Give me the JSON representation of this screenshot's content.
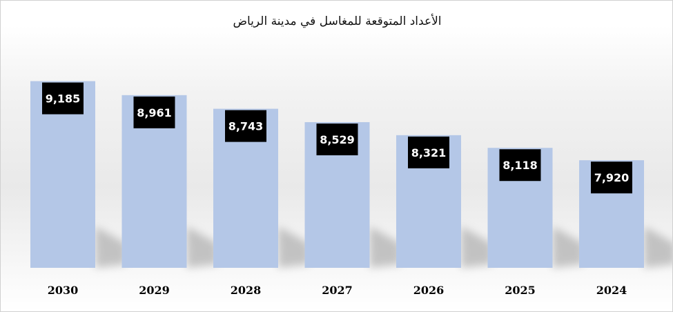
{
  "chart_data": {
    "type": "bar",
    "title": "الأعداد المتوقعة للمغاسل في مدينة الرياض",
    "categories": [
      "2030",
      "2029",
      "2028",
      "2027",
      "2026",
      "2025",
      "2024"
    ],
    "values": [
      9185,
      8961,
      8743,
      8529,
      8321,
      8118,
      7920
    ],
    "value_labels": [
      "9,185",
      "8,961",
      "8,743",
      "8,529",
      "8,321",
      "8,118",
      "7,920"
    ],
    "xlabel": "",
    "ylabel": "",
    "ylim": [
      6200,
      9500
    ],
    "grid": false,
    "legend": "none",
    "colors": {
      "bar": "#b4c7e7",
      "label_box": "#000000",
      "label_text": "#ffffff",
      "tick_text": "#000000"
    }
  }
}
